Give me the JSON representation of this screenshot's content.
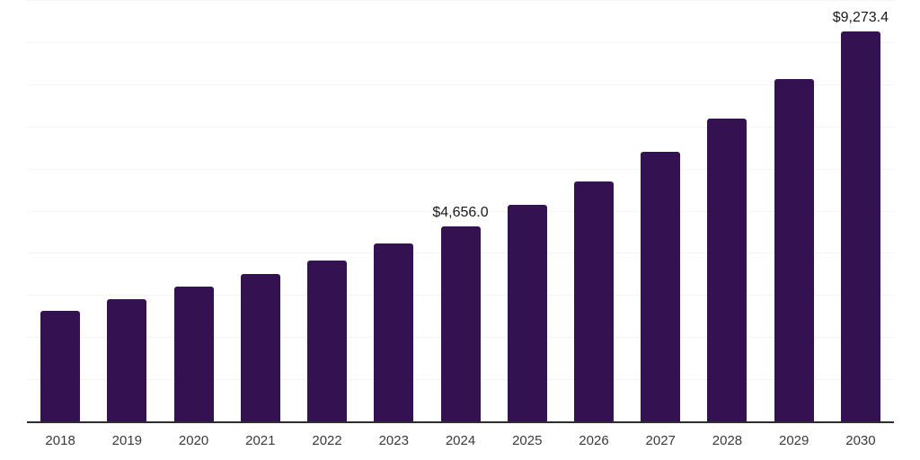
{
  "chart_data": {
    "type": "bar",
    "title": "",
    "xlabel": "",
    "ylabel": "",
    "categories": [
      "2018",
      "2019",
      "2020",
      "2021",
      "2022",
      "2023",
      "2024",
      "2025",
      "2026",
      "2027",
      "2028",
      "2029",
      "2030"
    ],
    "values": [
      2650,
      2930,
      3210,
      3520,
      3840,
      4240,
      4656.0,
      5160,
      5720,
      6410,
      7210,
      8140,
      9273.4
    ],
    "data_labels": {
      "2024": "$4,656.0",
      "2030": "$9,273.4"
    },
    "ylim": [
      0,
      10000
    ],
    "gridline_step": 1000,
    "grid": "horizontal-only, unlabeled y-axis",
    "legend_position": "none",
    "colors": {
      "bar": "#341150",
      "gridline": "#f4f4f4",
      "axis_line": "#2d2d2d",
      "value_label": "#1a1a1a",
      "tick_label": "#3a3a3a",
      "background": "#ffffff"
    }
  }
}
